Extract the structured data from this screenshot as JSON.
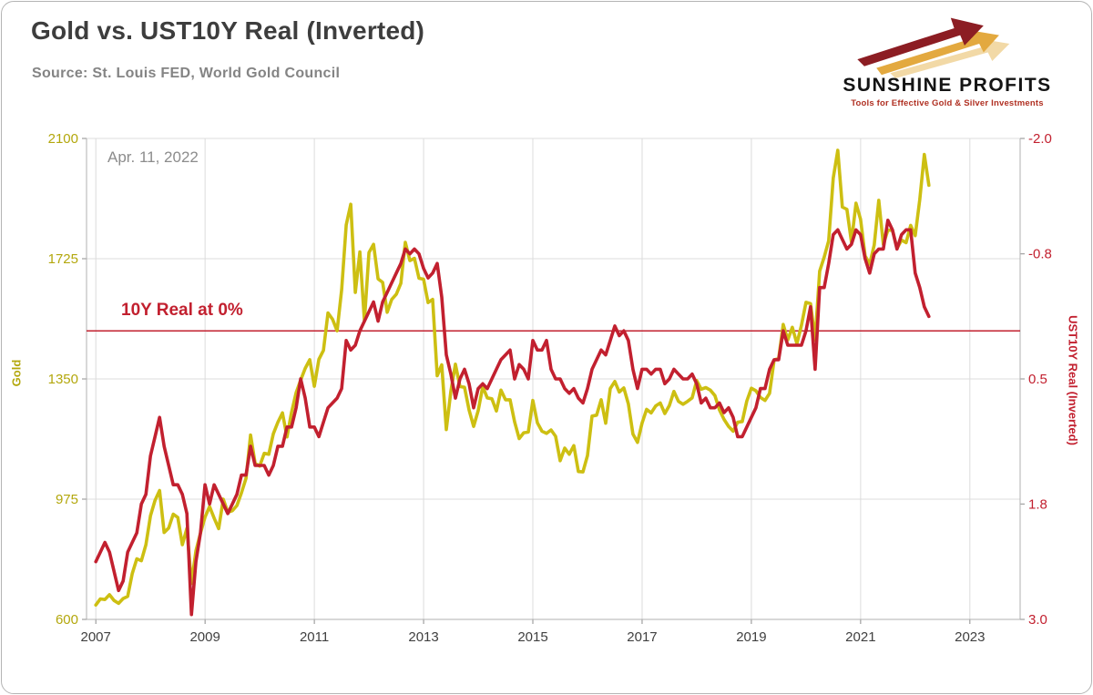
{
  "header": {
    "title": "Gold vs. UST10Y Real (Inverted)",
    "source": "Source: St. Louis FED, World Gold Council"
  },
  "logo": {
    "name": "SUNSHINE PROFITS",
    "tagline": "Tools for Effective Gold & Silver Investments"
  },
  "colors": {
    "gold_line": "#cdbf12",
    "gold_label": "#b3a70c",
    "red": "#c2202f",
    "grid": "#dcdcdc",
    "axis": "#b0b0b0",
    "tick": "#8c8c8c",
    "x_label": "#3f3f3f"
  },
  "chart_data": {
    "type": "line",
    "title": "Gold vs. UST10Y Real (Inverted)",
    "annotation_date": "Apr. 11, 2022",
    "x_ticks": [
      2007,
      2009,
      2011,
      2013,
      2015,
      2017,
      2019,
      2021,
      2023
    ],
    "x_range": [
      2006.83,
      2023.92
    ],
    "grid": true,
    "left_axis": {
      "label": "Gold",
      "ticks": [
        600,
        975,
        1350,
        1725,
        2100
      ],
      "range": [
        600,
        2100
      ]
    },
    "right_axis": {
      "label": "UST10Y Real (Inverted)",
      "ticks": [
        -2.0,
        -0.8,
        0.5,
        1.8,
        3.0
      ],
      "range_top": -2.0,
      "range_bottom": 3.0,
      "inverted": true
    },
    "reference_line": {
      "label": "10Y Real at 0%",
      "axis": "right",
      "value": 0
    },
    "series": [
      {
        "name": "Gold",
        "axis": "left",
        "color": "#cdbf12",
        "x_start": 2007.0,
        "x_step_years": 0.08333,
        "values": [
          645,
          664,
          662,
          677,
          659,
          650,
          665,
          672,
          743,
          789,
          783,
          833,
          923,
          971,
          1002,
          871,
          885,
          928,
          918,
          833,
          884,
          712,
          814,
          869,
          919,
          952,
          916,
          883,
          975,
          934,
          939,
          955,
          995,
          1040,
          1175,
          1087,
          1078,
          1118,
          1115,
          1179,
          1215,
          1244,
          1169,
          1246,
          1307,
          1346,
          1383,
          1410,
          1327,
          1411,
          1439,
          1556,
          1536,
          1500,
          1628,
          1830,
          1895,
          1620,
          1746,
          1531,
          1744,
          1770,
          1662,
          1651,
          1558,
          1598,
          1614,
          1648,
          1776,
          1719,
          1726,
          1664,
          1661,
          1588,
          1598,
          1360,
          1394,
          1192,
          1312,
          1396,
          1326,
          1324,
          1253,
          1202,
          1251,
          1326,
          1291,
          1288,
          1250,
          1315,
          1285,
          1285,
          1216,
          1164,
          1182,
          1184,
          1283,
          1213,
          1187,
          1180,
          1191,
          1171,
          1095,
          1134,
          1115,
          1142,
          1061,
          1060,
          1111,
          1234,
          1237,
          1285,
          1212,
          1320,
          1342,
          1309,
          1322,
          1272,
          1178,
          1152,
          1212,
          1255,
          1244,
          1266,
          1275,
          1242,
          1267,
          1311,
          1280,
          1271,
          1280,
          1291,
          1345,
          1318,
          1323,
          1315,
          1298,
          1253,
          1224,
          1202,
          1187,
          1215,
          1217,
          1281,
          1321,
          1313,
          1292,
          1283,
          1305,
          1409,
          1414,
          1520,
          1472,
          1511,
          1460,
          1517,
          1589,
          1585,
          1471,
          1686,
          1730,
          1781,
          1976,
          2063,
          1886,
          1879,
          1777,
          1898,
          1848,
          1734,
          1708,
          1768,
          1907,
          1770,
          1814,
          1814,
          1757,
          1783,
          1775,
          1829,
          1797,
          1909,
          2050,
          1954
        ]
      },
      {
        "name": "UST10Y Real (Inverted)",
        "axis": "right",
        "color": "#c2202f",
        "x_start": 2007.0,
        "x_step_years": 0.08333,
        "values": [
          2.4,
          2.3,
          2.2,
          2.3,
          2.5,
          2.7,
          2.6,
          2.3,
          2.2,
          2.1,
          1.8,
          1.7,
          1.3,
          1.1,
          0.9,
          1.2,
          1.4,
          1.6,
          1.6,
          1.7,
          1.9,
          2.95,
          2.4,
          2.1,
          1.6,
          1.8,
          1.6,
          1.7,
          1.8,
          1.9,
          1.8,
          1.7,
          1.5,
          1.5,
          1.2,
          1.4,
          1.4,
          1.4,
          1.5,
          1.4,
          1.2,
          1.2,
          1.0,
          1.0,
          0.8,
          0.5,
          0.7,
          1.0,
          1.0,
          1.1,
          0.95,
          0.8,
          0.75,
          0.7,
          0.6,
          0.1,
          0.2,
          0.15,
          0.0,
          -0.1,
          -0.2,
          -0.3,
          -0.1,
          -0.3,
          -0.4,
          -0.5,
          -0.6,
          -0.7,
          -0.85,
          -0.8,
          -0.85,
          -0.8,
          -0.65,
          -0.55,
          -0.6,
          -0.7,
          -0.35,
          0.25,
          0.45,
          0.7,
          0.5,
          0.4,
          0.55,
          0.8,
          0.6,
          0.55,
          0.6,
          0.5,
          0.4,
          0.3,
          0.25,
          0.2,
          0.5,
          0.35,
          0.4,
          0.5,
          0.1,
          0.2,
          0.2,
          0.1,
          0.4,
          0.5,
          0.5,
          0.6,
          0.65,
          0.6,
          0.7,
          0.75,
          0.6,
          0.4,
          0.3,
          0.2,
          0.25,
          0.1,
          -0.05,
          0.05,
          0.0,
          0.1,
          0.4,
          0.6,
          0.4,
          0.4,
          0.45,
          0.4,
          0.4,
          0.55,
          0.5,
          0.4,
          0.45,
          0.5,
          0.5,
          0.45,
          0.55,
          0.75,
          0.7,
          0.8,
          0.8,
          0.75,
          0.85,
          0.8,
          0.9,
          1.1,
          1.1,
          1.0,
          0.9,
          0.8,
          0.6,
          0.6,
          0.4,
          0.3,
          0.3,
          0.0,
          0.15,
          0.15,
          0.15,
          0.15,
          0.0,
          -0.25,
          0.4,
          -0.45,
          -0.45,
          -0.7,
          -1.0,
          -1.05,
          -0.95,
          -0.85,
          -0.9,
          -1.05,
          -1.0,
          -0.75,
          -0.6,
          -0.8,
          -0.85,
          -0.85,
          -1.15,
          -1.05,
          -0.85,
          -1.0,
          -1.05,
          -1.05,
          -0.6,
          -0.45,
          -0.25,
          -0.15
        ]
      }
    ]
  }
}
